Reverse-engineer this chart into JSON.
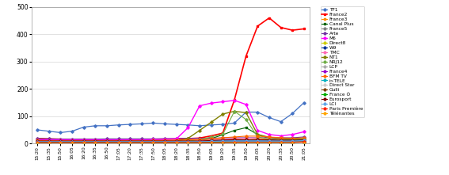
{
  "x_labels": [
    "15:20",
    "15:35",
    "15:50",
    "16:05",
    "16:20",
    "16:35",
    "16:50",
    "17:05",
    "17:20",
    "17:35",
    "17:50",
    "18:05",
    "18:20",
    "18:35",
    "18:50",
    "19:05",
    "19:20",
    "19:35",
    "19:50",
    "20:05",
    "20:20",
    "20:35",
    "20:50",
    "21:05"
  ],
  "ylim": [
    0,
    500
  ],
  "yticks": [
    0,
    100,
    200,
    300,
    400,
    500
  ],
  "series": [
    {
      "name": "TF1",
      "color": "#4472C4",
      "marker": "D",
      "ms": 1.8,
      "lw": 0.9,
      "values": [
        50,
        45,
        40,
        45,
        60,
        65,
        65,
        68,
        70,
        72,
        75,
        72,
        70,
        68,
        65,
        68,
        70,
        75,
        115,
        115,
        95,
        80,
        110,
        150
      ]
    },
    {
      "name": "France2",
      "color": "#FF0000",
      "marker": "s",
      "ms": 1.8,
      "lw": 1.2,
      "values": [
        18,
        17,
        16,
        14,
        15,
        15,
        14,
        14,
        14,
        14,
        15,
        16,
        17,
        18,
        20,
        28,
        38,
        160,
        320,
        430,
        460,
        425,
        415,
        420
      ]
    },
    {
      "name": "France3",
      "color": "#FF8C00",
      "marker": "o",
      "ms": 1.8,
      "lw": 0.8,
      "values": [
        14,
        13,
        12,
        13,
        13,
        13,
        13,
        13,
        13,
        13,
        13,
        13,
        13,
        14,
        14,
        15,
        15,
        17,
        20,
        18,
        17,
        17,
        17,
        19
      ]
    },
    {
      "name": "Canal Plus",
      "color": "#006400",
      "marker": "s",
      "ms": 1.8,
      "lw": 0.8,
      "values": [
        7,
        6,
        6,
        6,
        6,
        7,
        7,
        7,
        7,
        7,
        7,
        7,
        8,
        9,
        11,
        18,
        32,
        48,
        58,
        33,
        18,
        14,
        13,
        13
      ]
    },
    {
      "name": "France5",
      "color": "#7F7F7F",
      "marker": "D",
      "ms": 1.8,
      "lw": 0.8,
      "values": [
        11,
        10,
        10,
        10,
        10,
        10,
        10,
        10,
        10,
        10,
        10,
        10,
        10,
        10,
        10,
        10,
        10,
        11,
        11,
        11,
        11,
        11,
        11,
        13
      ]
    },
    {
      "name": "Arte",
      "color": "#7030A0",
      "marker": "D",
      "ms": 1.8,
      "lw": 0.8,
      "values": [
        18,
        17,
        16,
        16,
        16,
        16,
        17,
        17,
        17,
        17,
        17,
        18,
        18,
        19,
        19,
        19,
        21,
        21,
        21,
        21,
        21,
        21,
        21,
        24
      ]
    },
    {
      "name": "M6",
      "color": "#FF00FF",
      "marker": "D",
      "ms": 1.8,
      "lw": 1.0,
      "values": [
        13,
        13,
        13,
        13,
        13,
        13,
        13,
        13,
        13,
        13,
        14,
        15,
        17,
        58,
        138,
        148,
        153,
        158,
        143,
        48,
        33,
        28,
        33,
        43
      ]
    },
    {
      "name": "Direct8",
      "color": "#CCCC00",
      "marker": "D",
      "ms": 1.8,
      "lw": 0.8,
      "values": [
        7,
        7,
        7,
        7,
        7,
        7,
        7,
        7,
        7,
        7,
        7,
        7,
        7,
        7,
        7,
        8,
        8,
        9,
        9,
        9,
        9,
        9,
        9,
        10
      ]
    },
    {
      "name": "W9",
      "color": "#003399",
      "marker": "D",
      "ms": 1.8,
      "lw": 0.8,
      "values": [
        9,
        9,
        9,
        9,
        9,
        9,
        9,
        9,
        9,
        9,
        9,
        9,
        9,
        9,
        9,
        9,
        11,
        13,
        13,
        13,
        13,
        13,
        13,
        15
      ]
    },
    {
      "name": "TMC",
      "color": "#FF69B4",
      "marker": "D",
      "ms": 1.8,
      "lw": 0.8,
      "values": [
        11,
        10,
        10,
        10,
        10,
        10,
        10,
        10,
        10,
        10,
        10,
        10,
        10,
        10,
        11,
        13,
        15,
        19,
        19,
        21,
        19,
        17,
        17,
        17
      ]
    },
    {
      "name": "NT1",
      "color": "#808000",
      "marker": "D",
      "ms": 1.8,
      "lw": 1.0,
      "values": [
        7,
        7,
        7,
        7,
        7,
        7,
        7,
        7,
        7,
        7,
        7,
        7,
        8,
        19,
        48,
        78,
        108,
        118,
        113,
        33,
        23,
        18,
        16,
        18
      ]
    },
    {
      "name": "NRJ12",
      "color": "#70AD47",
      "marker": "D",
      "ms": 1.8,
      "lw": 0.8,
      "values": [
        7,
        7,
        7,
        7,
        7,
        7,
        7,
        7,
        7,
        7,
        7,
        7,
        8,
        9,
        14,
        24,
        34,
        118,
        88,
        24,
        16,
        13,
        12,
        18
      ]
    },
    {
      "name": "LCP",
      "color": "#AAAAAA",
      "marker": "D",
      "ms": 1.8,
      "lw": 0.8,
      "values": [
        7,
        7,
        7,
        7,
        7,
        7,
        7,
        7,
        7,
        7,
        7,
        7,
        7,
        7,
        8,
        8,
        8,
        9,
        9,
        9,
        9,
        9,
        9,
        11
      ]
    },
    {
      "name": "France4",
      "color": "#9900CC",
      "marker": "D",
      "ms": 1.8,
      "lw": 0.8,
      "values": [
        7,
        7,
        7,
        7,
        7,
        7,
        7,
        7,
        7,
        7,
        7,
        7,
        7,
        7,
        7,
        8,
        9,
        9,
        9,
        9,
        9,
        9,
        9,
        11
      ]
    },
    {
      "name": "BFM TV",
      "color": "#FF6600",
      "marker": "D",
      "ms": 1.8,
      "lw": 0.8,
      "values": [
        11,
        10,
        10,
        10,
        10,
        10,
        10,
        10,
        10,
        10,
        11,
        11,
        12,
        13,
        14,
        17,
        21,
        24,
        27,
        27,
        24,
        21,
        19,
        21
      ]
    },
    {
      "name": "i>TELE",
      "color": "#00B0C0",
      "marker": "D",
      "ms": 1.8,
      "lw": 0.8,
      "values": [
        7,
        7,
        7,
        7,
        7,
        7,
        7,
        7,
        7,
        7,
        7,
        7,
        7,
        7,
        7,
        8,
        9,
        9,
        9,
        9,
        9,
        9,
        9,
        11
      ]
    },
    {
      "name": "Direct Star",
      "color": "#CCCCCC",
      "marker": "D",
      "ms": 1.8,
      "lw": 0.8,
      "values": [
        5,
        5,
        5,
        5,
        5,
        5,
        5,
        5,
        5,
        5,
        5,
        5,
        5,
        5,
        5,
        5,
        6,
        6,
        6,
        6,
        6,
        6,
        6,
        7
      ]
    },
    {
      "name": "Gulli",
      "color": "#7B3F00",
      "marker": "D",
      "ms": 1.8,
      "lw": 0.8,
      "values": [
        5,
        5,
        5,
        5,
        5,
        5,
        5,
        5,
        5,
        5,
        5,
        5,
        5,
        5,
        5,
        5,
        6,
        6,
        6,
        6,
        6,
        6,
        6,
        7
      ]
    },
    {
      "name": "France Ô",
      "color": "#00AA00",
      "marker": "D",
      "ms": 1.8,
      "lw": 0.8,
      "values": [
        3,
        3,
        3,
        3,
        3,
        3,
        3,
        3,
        3,
        3,
        3,
        3,
        3,
        3,
        3,
        4,
        4,
        4,
        4,
        4,
        4,
        4,
        4,
        5
      ]
    },
    {
      "name": "Eurosport",
      "color": "#800000",
      "marker": "D",
      "ms": 1.8,
      "lw": 0.8,
      "values": [
        9,
        9,
        9,
        9,
        9,
        9,
        9,
        9,
        9,
        9,
        9,
        9,
        9,
        9,
        9,
        11,
        13,
        14,
        14,
        14,
        13,
        12,
        12,
        13
      ]
    },
    {
      "name": "LCI",
      "color": "#5DA5E8",
      "marker": "D",
      "ms": 1.8,
      "lw": 0.8,
      "values": [
        7,
        7,
        7,
        7,
        7,
        7,
        7,
        7,
        7,
        7,
        7,
        7,
        7,
        7,
        7,
        8,
        9,
        9,
        9,
        9,
        9,
        9,
        9,
        11
      ]
    },
    {
      "name": "Paris Première",
      "color": "#FF2200",
      "marker": "D",
      "ms": 1.8,
      "lw": 0.8,
      "values": [
        3,
        3,
        3,
        3,
        3,
        3,
        3,
        3,
        3,
        3,
        3,
        3,
        3,
        3,
        3,
        3,
        3,
        4,
        4,
        4,
        4,
        4,
        4,
        5
      ]
    },
    {
      "name": "Télénantes",
      "color": "#FFA500",
      "marker": "D",
      "ms": 1.8,
      "lw": 0.8,
      "values": [
        1,
        1,
        1,
        1,
        1,
        1,
        1,
        1,
        1,
        1,
        1,
        1,
        1,
        1,
        1,
        1,
        1,
        1,
        1,
        1,
        1,
        1,
        1,
        1
      ]
    }
  ]
}
